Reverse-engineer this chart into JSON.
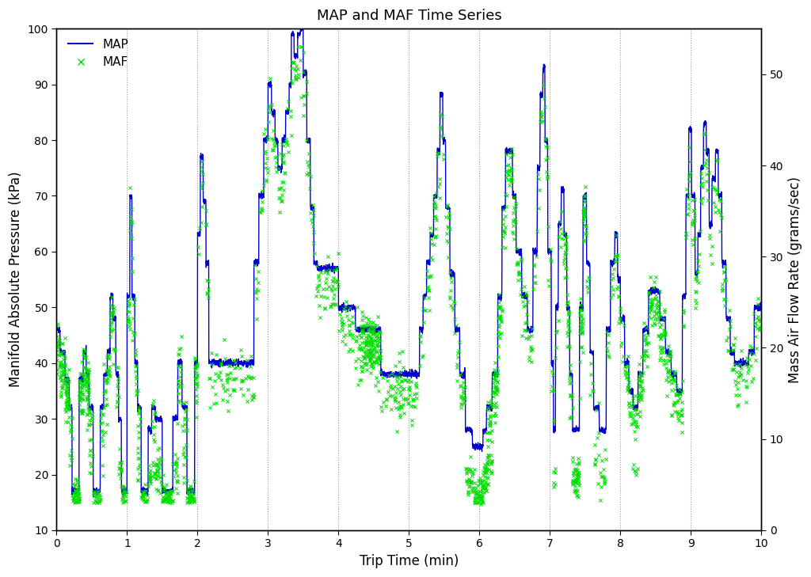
{
  "title": "MAP and MAF Time Series",
  "xlabel": "Trip Time (min)",
  "ylabel_left": "Manifold Absolute Pressure (kPa)",
  "ylabel_right": "Mass Air Flow Rate (grams/sec)",
  "xlim": [
    0,
    10
  ],
  "ylim_left": [
    10,
    100
  ],
  "ylim_right": [
    0,
    55
  ],
  "xticks": [
    0,
    1,
    2,
    3,
    4,
    5,
    6,
    7,
    8,
    9,
    10
  ],
  "yticks_left": [
    10,
    20,
    30,
    40,
    50,
    60,
    70,
    80,
    90,
    100
  ],
  "yticks_right": [
    0,
    10,
    20,
    30,
    40,
    50
  ],
  "map_color": "#0000cc",
  "maf_color": "#00dd00",
  "background_color": "#ffffff",
  "grid_color": "#999999",
  "vline_positions": [
    1,
    2,
    3,
    4,
    5,
    6,
    7,
    8,
    9
  ],
  "map_linewidth": 1.0,
  "legend_map": "MAP",
  "legend_maf": "MAF",
  "seed": 42
}
